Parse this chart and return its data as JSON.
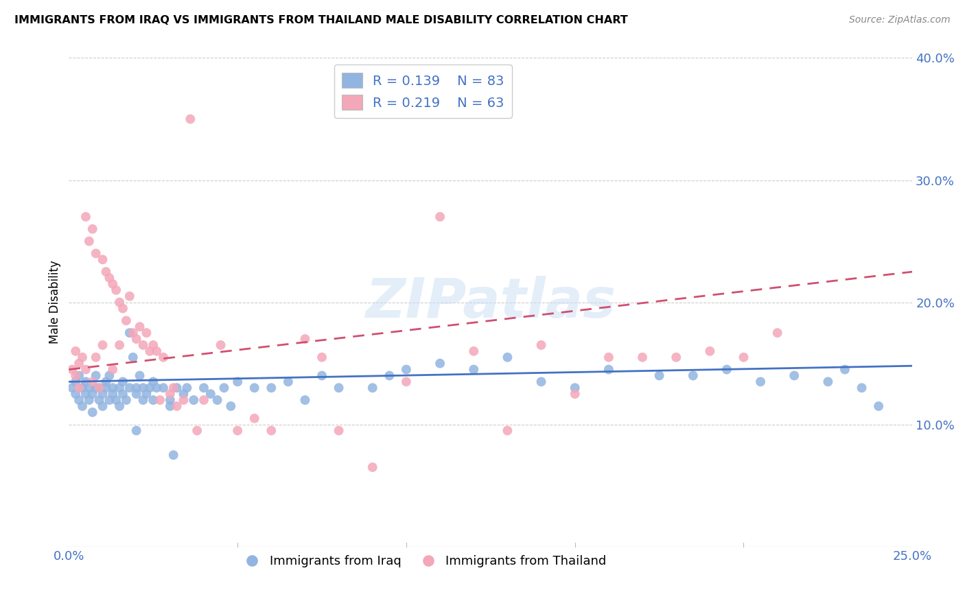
{
  "title": "IMMIGRANTS FROM IRAQ VS IMMIGRANTS FROM THAILAND MALE DISABILITY CORRELATION CHART",
  "source": "Source: ZipAtlas.com",
  "ylabel": "Male Disability",
  "xlim": [
    0.0,
    0.25
  ],
  "ylim": [
    0.0,
    0.4
  ],
  "iraq_R": 0.139,
  "iraq_N": 83,
  "thailand_R": 0.219,
  "thailand_N": 63,
  "iraq_color": "#92b4e0",
  "thailand_color": "#f4a7b9",
  "iraq_line_color": "#4472c4",
  "thailand_line_color": "#d05070",
  "watermark": "ZIPatlas",
  "iraq_scatter_x": [
    0.001,
    0.002,
    0.002,
    0.003,
    0.003,
    0.004,
    0.004,
    0.005,
    0.005,
    0.006,
    0.006,
    0.007,
    0.007,
    0.008,
    0.008,
    0.009,
    0.009,
    0.01,
    0.01,
    0.011,
    0.011,
    0.012,
    0.012,
    0.013,
    0.013,
    0.014,
    0.015,
    0.015,
    0.016,
    0.016,
    0.017,
    0.018,
    0.018,
    0.019,
    0.02,
    0.02,
    0.021,
    0.022,
    0.022,
    0.023,
    0.024,
    0.025,
    0.026,
    0.028,
    0.03,
    0.031,
    0.032,
    0.034,
    0.035,
    0.037,
    0.04,
    0.042,
    0.044,
    0.046,
    0.048,
    0.05,
    0.055,
    0.06,
    0.065,
    0.07,
    0.075,
    0.08,
    0.09,
    0.095,
    0.1,
    0.11,
    0.12,
    0.13,
    0.14,
    0.15,
    0.16,
    0.175,
    0.185,
    0.195,
    0.205,
    0.215,
    0.225,
    0.23,
    0.235,
    0.24,
    0.02,
    0.025,
    0.03
  ],
  "iraq_scatter_y": [
    0.13,
    0.125,
    0.135,
    0.12,
    0.14,
    0.13,
    0.115,
    0.125,
    0.135,
    0.12,
    0.13,
    0.11,
    0.125,
    0.13,
    0.14,
    0.12,
    0.13,
    0.115,
    0.125,
    0.135,
    0.13,
    0.12,
    0.14,
    0.125,
    0.13,
    0.12,
    0.13,
    0.115,
    0.125,
    0.135,
    0.12,
    0.175,
    0.13,
    0.155,
    0.125,
    0.13,
    0.14,
    0.13,
    0.12,
    0.125,
    0.13,
    0.135,
    0.13,
    0.13,
    0.12,
    0.075,
    0.13,
    0.125,
    0.13,
    0.12,
    0.13,
    0.125,
    0.12,
    0.13,
    0.115,
    0.135,
    0.13,
    0.13,
    0.135,
    0.12,
    0.14,
    0.13,
    0.13,
    0.14,
    0.145,
    0.15,
    0.145,
    0.155,
    0.135,
    0.13,
    0.145,
    0.14,
    0.14,
    0.145,
    0.135,
    0.14,
    0.135,
    0.145,
    0.13,
    0.115,
    0.095,
    0.12,
    0.115
  ],
  "thailand_scatter_x": [
    0.001,
    0.002,
    0.002,
    0.003,
    0.003,
    0.004,
    0.005,
    0.005,
    0.006,
    0.007,
    0.007,
    0.008,
    0.008,
    0.009,
    0.01,
    0.01,
    0.011,
    0.012,
    0.013,
    0.013,
    0.014,
    0.015,
    0.015,
    0.016,
    0.017,
    0.018,
    0.019,
    0.02,
    0.021,
    0.022,
    0.023,
    0.024,
    0.025,
    0.026,
    0.027,
    0.028,
    0.03,
    0.031,
    0.032,
    0.034,
    0.036,
    0.038,
    0.04,
    0.045,
    0.05,
    0.055,
    0.06,
    0.07,
    0.075,
    0.08,
    0.09,
    0.1,
    0.11,
    0.12,
    0.13,
    0.14,
    0.15,
    0.16,
    0.17,
    0.18,
    0.19,
    0.2,
    0.21
  ],
  "thailand_scatter_y": [
    0.145,
    0.14,
    0.16,
    0.15,
    0.13,
    0.155,
    0.27,
    0.145,
    0.25,
    0.26,
    0.135,
    0.24,
    0.155,
    0.13,
    0.165,
    0.235,
    0.225,
    0.22,
    0.215,
    0.145,
    0.21,
    0.165,
    0.2,
    0.195,
    0.185,
    0.205,
    0.175,
    0.17,
    0.18,
    0.165,
    0.175,
    0.16,
    0.165,
    0.16,
    0.12,
    0.155,
    0.125,
    0.13,
    0.115,
    0.12,
    0.35,
    0.095,
    0.12,
    0.165,
    0.095,
    0.105,
    0.095,
    0.17,
    0.155,
    0.095,
    0.065,
    0.135,
    0.27,
    0.16,
    0.095,
    0.165,
    0.125,
    0.155,
    0.155,
    0.155,
    0.16,
    0.155,
    0.175
  ]
}
